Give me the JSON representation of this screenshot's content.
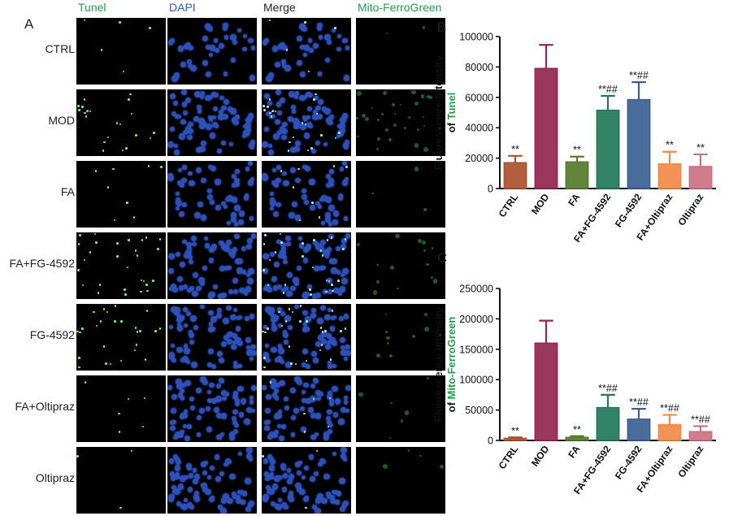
{
  "panels": {
    "a": "A",
    "b": "B",
    "c": "C"
  },
  "columns": [
    {
      "label": "Tunel",
      "color": "#1aa34a"
    },
    {
      "label": "DAPI",
      "color": "#2a5cd6"
    },
    {
      "label": "Merge",
      "color": "#222222"
    },
    {
      "label": "Mito-FerroGreen",
      "color": "#1aa34a"
    }
  ],
  "rows": [
    {
      "label": "CTRL",
      "tunel": 5,
      "dapi": 38,
      "mito": 2
    },
    {
      "label": "MOD",
      "tunel": 22,
      "dapi": 70,
      "mito": 30
    },
    {
      "label": "FA",
      "tunel": 8,
      "dapi": 52,
      "mito": 3
    },
    {
      "label": "FA+FG-4592",
      "tunel": 28,
      "dapi": 70,
      "mito": 14
    },
    {
      "label": "FG-4592",
      "tunel": 26,
      "dapi": 72,
      "mito": 10
    },
    {
      "label": "FA+Oltipraz",
      "tunel": 6,
      "dapi": 72,
      "mito": 6
    },
    {
      "label": "Oltipraz",
      "tunel": 3,
      "dapi": 74,
      "mito": 4
    }
  ],
  "chart_data": [
    {
      "type": "bar",
      "panel": "B",
      "ylabel": [
        "Fluorescence Intensity",
        "of ",
        "Tunel"
      ],
      "ylabel_highlight_color": "#1aa34a",
      "ylim": [
        0,
        100000
      ],
      "yticks": [
        "0",
        "20000",
        "40000",
        "60000",
        "80000",
        "100000"
      ],
      "categories": [
        "CTRL",
        "MOD",
        "FA",
        "FA+FG-4592",
        "FG-4592",
        "FA+Oltipraz",
        "Oltipraz"
      ],
      "values": [
        17000,
        79000,
        17500,
        51500,
        58500,
        16200,
        14500
      ],
      "errors": [
        4500,
        15500,
        3500,
        9500,
        11500,
        8000,
        8000
      ],
      "annotations": [
        "**",
        "",
        "**",
        "**##",
        "**##",
        "**",
        "**"
      ],
      "colors": [
        "#a8532f",
        "#93264e",
        "#557a2d",
        "#22785a",
        "#3a5f92",
        "#ef8a47",
        "#cb7185"
      ]
    },
    {
      "type": "bar",
      "panel": "C",
      "ylabel": [
        "Fluorescence Intensity",
        "of ",
        "Mito-FerroGreen"
      ],
      "ylabel_highlight_color": "#1aa34a",
      "ylim": [
        0,
        250000
      ],
      "yticks": [
        "0",
        "50000",
        "100000",
        "150000",
        "200000",
        "250000"
      ],
      "categories": [
        "CTRL",
        "MOD",
        "FA",
        "FA+FG-4592",
        "FG-4592",
        "FA+Oltipraz",
        "Oltipraz"
      ],
      "values": [
        3500,
        160000,
        5000,
        54000,
        35000,
        26000,
        14500
      ],
      "errors": [
        1500,
        37000,
        2000,
        21000,
        17000,
        16000,
        9000
      ],
      "annotations": [
        "**",
        "",
        "**",
        "**##",
        "**##",
        "**##",
        "**##"
      ],
      "colors": [
        "#a8532f",
        "#93264e",
        "#557a2d",
        "#22785a",
        "#3a5f92",
        "#ef8a47",
        "#cb7185"
      ]
    }
  ]
}
